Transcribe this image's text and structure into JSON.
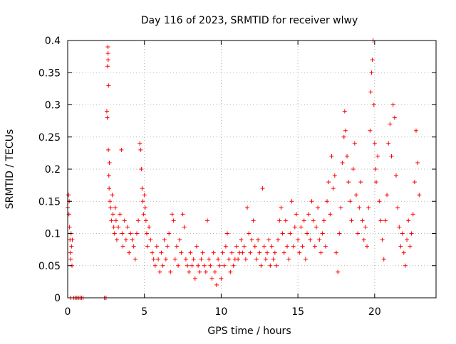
{
  "chart_data": {
    "type": "scatter",
    "title": "Day 116 of 2023, SRMTID for receiver wlwy",
    "xlabel": "GPS time / hours",
    "ylabel": "SRMTID / TECUs",
    "xlim": [
      0,
      24
    ],
    "ylim": [
      0,
      0.4
    ],
    "xticks": [
      0,
      5,
      10,
      15,
      20
    ],
    "xtick_labels": [
      "0",
      "5",
      "10",
      "15",
      "20"
    ],
    "yticks": [
      0,
      0.05,
      0.1,
      0.15,
      0.2,
      0.25,
      0.3,
      0.35,
      0.4
    ],
    "ytick_labels": [
      "0",
      "0.05",
      "0.1",
      "0.15",
      "0.2",
      "0.25",
      "0.3",
      "0.35",
      "0.4"
    ],
    "grid": true,
    "marker": "plus",
    "series_color": "#ff0000",
    "series": [
      {
        "name": "SRMTID",
        "points": [
          [
            0.0,
            0.14
          ],
          [
            0.05,
            0.16
          ],
          [
            0.08,
            0.13
          ],
          [
            0.1,
            0.15
          ],
          [
            0.12,
            0.11
          ],
          [
            0.15,
            0.09
          ],
          [
            0.18,
            0.07
          ],
          [
            0.2,
            0.06
          ],
          [
            0.22,
            0.1
          ],
          [
            0.25,
            0.08
          ],
          [
            0.28,
            0.05
          ],
          [
            0.3,
            0.09
          ],
          [
            0.2,
            0.0
          ],
          [
            0.4,
            0.0
          ],
          [
            0.5,
            0.0
          ],
          [
            0.6,
            0.0
          ],
          [
            0.7,
            0.0
          ],
          [
            0.8,
            0.0
          ],
          [
            0.9,
            0.0
          ],
          [
            1.0,
            0.0
          ],
          [
            2.4,
            0.0
          ],
          [
            2.5,
            0.0
          ],
          [
            2.55,
            0.29
          ],
          [
            2.58,
            0.28
          ],
          [
            2.6,
            0.36
          ],
          [
            2.62,
            0.39
          ],
          [
            2.63,
            0.38
          ],
          [
            2.64,
            0.37
          ],
          [
            2.65,
            0.23
          ],
          [
            2.66,
            0.33
          ],
          [
            2.68,
            0.19
          ],
          [
            2.7,
            0.17
          ],
          [
            2.72,
            0.21
          ],
          [
            2.75,
            0.15
          ],
          [
            2.8,
            0.14
          ],
          [
            2.85,
            0.12
          ],
          [
            2.9,
            0.16
          ],
          [
            2.95,
            0.13
          ],
          [
            3.0,
            0.11
          ],
          [
            3.05,
            0.1
          ],
          [
            3.1,
            0.14
          ],
          [
            3.15,
            0.12
          ],
          [
            3.2,
            0.09
          ],
          [
            3.3,
            0.11
          ],
          [
            3.4,
            0.13
          ],
          [
            3.5,
            0.23
          ],
          [
            3.55,
            0.1
          ],
          [
            3.6,
            0.08
          ],
          [
            3.7,
            0.12
          ],
          [
            3.8,
            0.09
          ],
          [
            3.9,
            0.11
          ],
          [
            4.0,
            0.07
          ],
          [
            4.1,
            0.1
          ],
          [
            4.2,
            0.09
          ],
          [
            4.3,
            0.08
          ],
          [
            4.4,
            0.06
          ],
          [
            4.5,
            0.1
          ],
          [
            4.6,
            0.12
          ],
          [
            4.7,
            0.24
          ],
          [
            4.75,
            0.23
          ],
          [
            4.8,
            0.2
          ],
          [
            4.85,
            0.17
          ],
          [
            4.9,
            0.15
          ],
          [
            4.95,
            0.13
          ],
          [
            5.0,
            0.16
          ],
          [
            5.05,
            0.14
          ],
          [
            5.1,
            0.12
          ],
          [
            5.15,
            0.1
          ],
          [
            5.2,
            0.08
          ],
          [
            5.3,
            0.11
          ],
          [
            5.4,
            0.09
          ],
          [
            5.5,
            0.07
          ],
          [
            5.6,
            0.06
          ],
          [
            5.7,
            0.05
          ],
          [
            5.8,
            0.08
          ],
          [
            5.9,
            0.06
          ],
          [
            6.0,
            0.04
          ],
          [
            6.1,
            0.07
          ],
          [
            6.2,
            0.05
          ],
          [
            6.3,
            0.09
          ],
          [
            6.4,
            0.06
          ],
          [
            6.5,
            0.08
          ],
          [
            6.6,
            0.1
          ],
          [
            6.7,
            0.04
          ],
          [
            6.8,
            0.13
          ],
          [
            6.9,
            0.12
          ],
          [
            7.0,
            0.06
          ],
          [
            7.1,
            0.08
          ],
          [
            7.2,
            0.05
          ],
          [
            7.3,
            0.09
          ],
          [
            7.4,
            0.07
          ],
          [
            7.5,
            0.13
          ],
          [
            7.6,
            0.11
          ],
          [
            7.7,
            0.06
          ],
          [
            7.8,
            0.05
          ],
          [
            7.9,
            0.04
          ],
          [
            8.0,
            0.07
          ],
          [
            8.1,
            0.05
          ],
          [
            8.2,
            0.06
          ],
          [
            8.3,
            0.03
          ],
          [
            8.4,
            0.08
          ],
          [
            8.5,
            0.05
          ],
          [
            8.6,
            0.04
          ],
          [
            8.7,
            0.06
          ],
          [
            8.8,
            0.07
          ],
          [
            8.9,
            0.05
          ],
          [
            9.0,
            0.04
          ],
          [
            9.1,
            0.12
          ],
          [
            9.2,
            0.06
          ],
          [
            9.3,
            0.05
          ],
          [
            9.4,
            0.03
          ],
          [
            9.5,
            0.07
          ],
          [
            9.6,
            0.04
          ],
          [
            9.7,
            0.02
          ],
          [
            9.8,
            0.06
          ],
          [
            9.9,
            0.05
          ],
          [
            10.0,
            0.03
          ],
          [
            10.1,
            0.07
          ],
          [
            10.2,
            0.05
          ],
          [
            10.3,
            0.08
          ],
          [
            10.4,
            0.1
          ],
          [
            10.5,
            0.06
          ],
          [
            10.6,
            0.04
          ],
          [
            10.7,
            0.07
          ],
          [
            10.8,
            0.05
          ],
          [
            10.9,
            0.06
          ],
          [
            11.0,
            0.08
          ],
          [
            11.1,
            0.06
          ],
          [
            11.2,
            0.07
          ],
          [
            11.3,
            0.09
          ],
          [
            11.4,
            0.07
          ],
          [
            11.5,
            0.08
          ],
          [
            11.6,
            0.06
          ],
          [
            11.7,
            0.14
          ],
          [
            11.8,
            0.1
          ],
          [
            11.9,
            0.07
          ],
          [
            12.0,
            0.09
          ],
          [
            12.1,
            0.12
          ],
          [
            12.2,
            0.08
          ],
          [
            12.3,
            0.06
          ],
          [
            12.4,
            0.09
          ],
          [
            12.5,
            0.07
          ],
          [
            12.6,
            0.05
          ],
          [
            12.7,
            0.17
          ],
          [
            12.8,
            0.08
          ],
          [
            12.9,
            0.06
          ],
          [
            13.0,
            0.07
          ],
          [
            13.1,
            0.09
          ],
          [
            13.2,
            0.05
          ],
          [
            13.3,
            0.08
          ],
          [
            13.4,
            0.06
          ],
          [
            13.5,
            0.07
          ],
          [
            13.6,
            0.05
          ],
          [
            13.7,
            0.09
          ],
          [
            13.8,
            0.12
          ],
          [
            13.9,
            0.14
          ],
          [
            14.0,
            0.1
          ],
          [
            14.1,
            0.07
          ],
          [
            14.2,
            0.12
          ],
          [
            14.3,
            0.08
          ],
          [
            14.4,
            0.06
          ],
          [
            14.5,
            0.1
          ],
          [
            14.6,
            0.15
          ],
          [
            14.7,
            0.08
          ],
          [
            14.8,
            0.11
          ],
          [
            14.9,
            0.13
          ],
          [
            15.0,
            0.09
          ],
          [
            15.1,
            0.07
          ],
          [
            15.2,
            0.11
          ],
          [
            15.3,
            0.08
          ],
          [
            15.4,
            0.12
          ],
          [
            15.5,
            0.06
          ],
          [
            15.6,
            0.1
          ],
          [
            15.7,
            0.13
          ],
          [
            15.8,
            0.09
          ],
          [
            15.9,
            0.15
          ],
          [
            16.0,
            0.12
          ],
          [
            16.1,
            0.08
          ],
          [
            16.2,
            0.11
          ],
          [
            16.3,
            0.14
          ],
          [
            16.4,
            0.09
          ],
          [
            16.5,
            0.07
          ],
          [
            16.6,
            0.1
          ],
          [
            16.7,
            0.12
          ],
          [
            16.8,
            0.08
          ],
          [
            16.9,
            0.15
          ],
          [
            17.0,
            0.18
          ],
          [
            17.1,
            0.13
          ],
          [
            17.2,
            0.22
          ],
          [
            17.3,
            0.17
          ],
          [
            17.4,
            0.19
          ],
          [
            17.5,
            0.07
          ],
          [
            17.6,
            0.04
          ],
          [
            17.7,
            0.1
          ],
          [
            17.8,
            0.14
          ],
          [
            17.9,
            0.21
          ],
          [
            18.0,
            0.25
          ],
          [
            18.05,
            0.29
          ],
          [
            18.1,
            0.26
          ],
          [
            18.2,
            0.22
          ],
          [
            18.3,
            0.18
          ],
          [
            18.4,
            0.15
          ],
          [
            18.5,
            0.12
          ],
          [
            18.6,
            0.2
          ],
          [
            18.7,
            0.24
          ],
          [
            18.8,
            0.16
          ],
          [
            18.9,
            0.1
          ],
          [
            19.0,
            0.14
          ],
          [
            19.1,
            0.18
          ],
          [
            19.2,
            0.12
          ],
          [
            19.3,
            0.09
          ],
          [
            19.4,
            0.11
          ],
          [
            19.5,
            0.08
          ],
          [
            19.6,
            0.14
          ],
          [
            19.7,
            0.26
          ],
          [
            19.75,
            0.32
          ],
          [
            19.8,
            0.35
          ],
          [
            19.85,
            0.37
          ],
          [
            19.9,
            0.4
          ],
          [
            19.95,
            0.3
          ],
          [
            20.0,
            0.24
          ],
          [
            20.05,
            0.2
          ],
          [
            20.1,
            0.18
          ],
          [
            20.2,
            0.22
          ],
          [
            20.3,
            0.15
          ],
          [
            20.4,
            0.12
          ],
          [
            20.5,
            0.09
          ],
          [
            20.6,
            0.06
          ],
          [
            20.7,
            0.12
          ],
          [
            20.8,
            0.16
          ],
          [
            20.9,
            0.24
          ],
          [
            21.0,
            0.27
          ],
          [
            21.1,
            0.22
          ],
          [
            21.2,
            0.3
          ],
          [
            21.3,
            0.28
          ],
          [
            21.4,
            0.19
          ],
          [
            21.5,
            0.14
          ],
          [
            21.6,
            0.11
          ],
          [
            21.7,
            0.08
          ],
          [
            21.8,
            0.1
          ],
          [
            21.9,
            0.07
          ],
          [
            22.0,
            0.05
          ],
          [
            22.1,
            0.09
          ],
          [
            22.2,
            0.12
          ],
          [
            22.3,
            0.08
          ],
          [
            22.4,
            0.1
          ],
          [
            22.5,
            0.13
          ],
          [
            22.6,
            0.18
          ],
          [
            22.7,
            0.26
          ],
          [
            22.8,
            0.21
          ],
          [
            22.9,
            0.16
          ]
        ]
      }
    ]
  }
}
